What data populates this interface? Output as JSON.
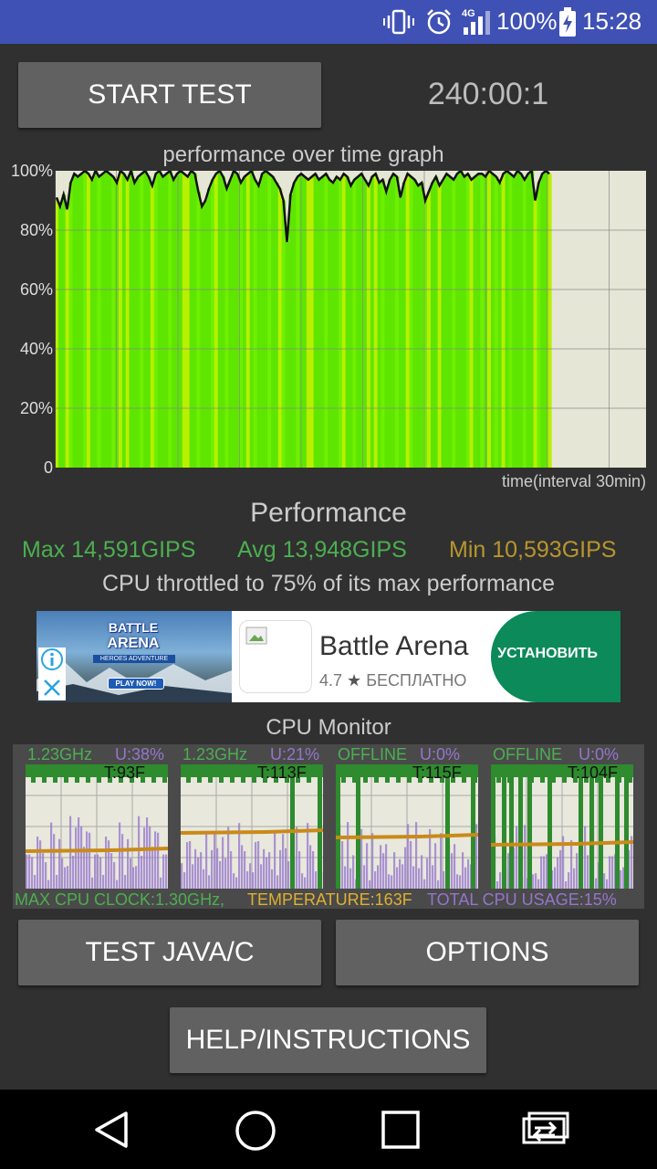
{
  "status_bar": {
    "battery": "100%",
    "time": "15:28",
    "network": "4G",
    "icons": [
      "vibrate-icon",
      "alarm-icon",
      "signal-icon",
      "battery-charging-icon"
    ]
  },
  "controls": {
    "start_test": "START TEST",
    "timer": "240:00:1"
  },
  "graph": {
    "title": "performance over time graph",
    "y_labels": [
      "100%",
      "80%",
      "60%",
      "40%",
      "20%",
      "0"
    ],
    "x_label": "time(interval 30min)"
  },
  "chart_data": {
    "type": "line",
    "title": "performance over time graph",
    "xlabel": "time(interval 30min)",
    "ylabel": "",
    "ylim": [
      0,
      100
    ],
    "y": [
      91,
      88,
      92,
      87,
      96,
      99,
      98,
      99,
      100,
      99,
      97,
      100,
      98,
      99,
      100,
      99,
      98,
      96,
      100,
      99,
      97,
      100,
      96,
      98,
      99,
      100,
      98,
      95,
      99,
      100,
      98,
      99,
      100,
      97,
      99,
      100,
      99,
      98,
      100,
      99,
      93,
      88,
      90,
      94,
      97,
      99,
      100,
      98,
      94,
      97,
      100,
      99,
      96,
      98,
      99,
      100,
      97,
      95,
      99,
      100,
      99,
      98,
      96,
      94,
      90,
      76,
      92,
      96,
      98,
      99,
      98,
      97,
      98,
      99,
      97,
      98,
      99,
      97,
      96,
      98,
      97,
      99,
      98,
      95,
      97,
      98,
      99,
      97,
      95,
      98,
      99,
      96,
      97,
      93,
      97,
      99,
      98,
      91,
      96,
      99,
      98,
      97,
      95,
      96,
      90,
      93,
      96,
      98,
      95,
      97,
      99,
      98,
      97,
      99,
      100,
      98,
      99,
      97,
      98,
      99,
      99,
      98,
      100,
      99,
      98,
      96,
      99,
      100,
      99,
      98,
      100,
      99,
      97,
      99,
      100,
      90,
      96,
      99,
      100,
      99
    ],
    "grid": true
  },
  "performance": {
    "title": "Performance",
    "max": "Max 14,591GIPS",
    "avg": "Avg 13,948GIPS",
    "min": "Min 10,593GIPS",
    "throttle": "CPU throttled to 75% of its max performance"
  },
  "ad": {
    "name": "Battle Arena",
    "rating": "4.7",
    "price": "БЕСПЛАТНО",
    "install": "УСТАНОВИТЬ",
    "banner_line1": "BATTLE",
    "banner_line2": "ARENA",
    "banner_sub": "HEROES ADVENTURE",
    "banner_play": "PLAY NOW!"
  },
  "cpu_monitor": {
    "title": "CPU Monitor",
    "cores": [
      {
        "freq": "1.23GHz",
        "usage": "U:38%",
        "temp": "T:93F"
      },
      {
        "freq": "1.23GHz",
        "usage": "U:21%",
        "temp": "T:113F"
      },
      {
        "freq": "OFFLINE",
        "usage": "U:0%",
        "temp": "T:115F"
      },
      {
        "freq": "OFFLINE",
        "usage": "U:0%",
        "temp": "T:104F"
      }
    ],
    "max_clock": "MAX CPU CLOCK:1.30GHz,",
    "temperature": "TEMPERATURE:163F",
    "total_usage": "TOTAL CPU USAGE:15%"
  },
  "buttons": {
    "test_java": "TEST JAVA/C",
    "options": "OPTIONS",
    "help": "HELP/INSTRUCTIONS"
  },
  "colors": {
    "status_bar": "#3f51b5",
    "graph_green": "#7cfc00",
    "graph_empty": "#e6e6d6",
    "max_green": "#4caf50",
    "min_gold": "#b8962e",
    "usage_purple": "#9575cd",
    "temp_orange": "#c98a1a",
    "install_green": "#0c8a5a"
  }
}
